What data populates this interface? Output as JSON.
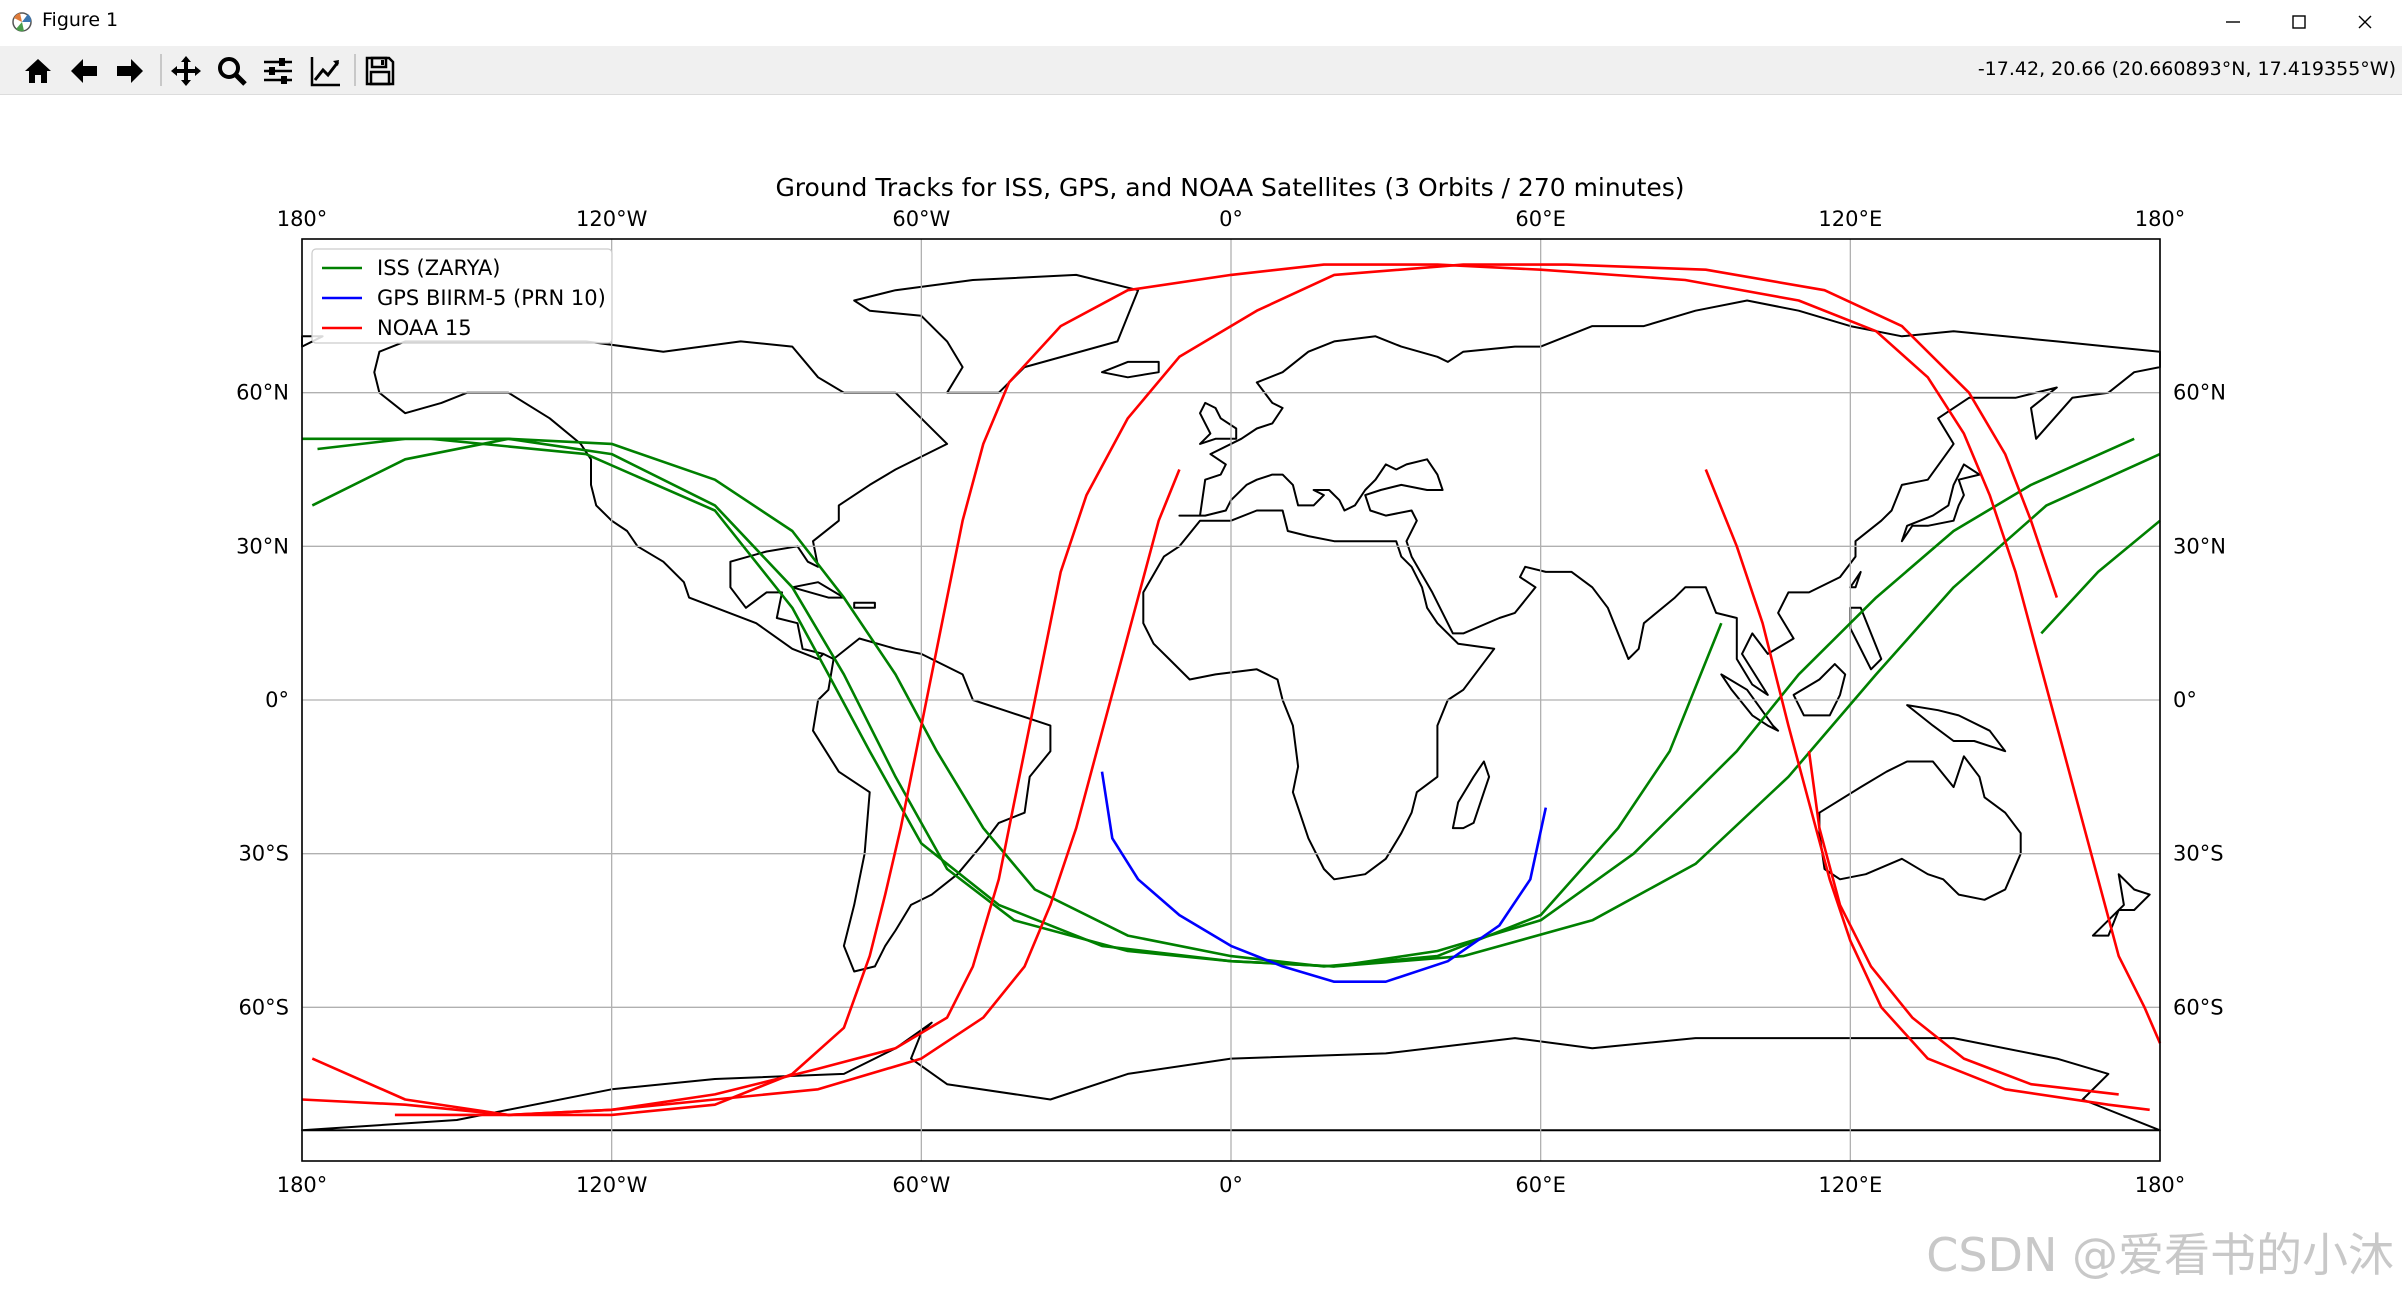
{
  "window": {
    "title": "Figure 1",
    "minimize_icon": "minimize-icon",
    "maximize_icon": "maximize-icon",
    "close_icon": "close-icon"
  },
  "toolbar": {
    "buttons": [
      "home-icon",
      "back-arrow-icon",
      "forward-arrow-icon",
      "pan-move-icon",
      "zoom-magnifier-icon",
      "configure-subplots-icon",
      "edit-axis-icon",
      "save-floppy-icon"
    ],
    "coordinates": "-17.42, 20.66 (20.660893°N, 17.419355°W)"
  },
  "watermark": "CSDN @爱看书的小沐",
  "chart_data": {
    "type": "line",
    "title": "Ground Tracks for ISS, GPS, and NOAA Satellites (3 Orbits / 270 minutes)",
    "xlim": [
      -180,
      180
    ],
    "ylim": [
      -90,
      90
    ],
    "grid": true,
    "projection": "PlateCarree world map with coastlines",
    "x_ticks": [
      -180,
      -120,
      -60,
      0,
      60,
      120,
      180
    ],
    "x_tick_labels": [
      "180°",
      "120°W",
      "60°W",
      "0°",
      "60°E",
      "120°E",
      "180°"
    ],
    "y_ticks": [
      60,
      30,
      0,
      -30,
      -60
    ],
    "y_tick_labels": [
      "60°N",
      "30°N",
      "0°",
      "30°S",
      "60°S"
    ],
    "legend_position": "upper-left",
    "series": [
      {
        "name": "ISS (ZARYA)",
        "color": "#008000",
        "segments": [
          [
            [
              -178,
              38
            ],
            [
              -160,
              47
            ],
            [
              -140,
              51
            ],
            [
              -120,
              50
            ],
            [
              -100,
              43
            ],
            [
              -85,
              33
            ],
            [
              -75,
              20
            ],
            [
              -65,
              5
            ],
            [
              -57,
              -10
            ],
            [
              -48,
              -25
            ],
            [
              -38,
              -37
            ],
            [
              -20,
              -46
            ],
            [
              0,
              -50
            ],
            [
              18,
              -52
            ],
            [
              40,
              -50
            ],
            [
              60,
              -42
            ],
            [
              75,
              -25
            ],
            [
              85,
              -10
            ],
            [
              95,
              15
            ]
          ],
          [
            [
              -177,
              49
            ],
            [
              -160,
              51
            ],
            [
              -140,
              51
            ],
            [
              -120,
              48
            ],
            [
              -100,
              38
            ],
            [
              -85,
              22
            ],
            [
              -75,
              5
            ],
            [
              -65,
              -15
            ],
            [
              -55,
              -33
            ],
            [
              -42,
              -43
            ],
            [
              -20,
              -49
            ],
            [
              0,
              -51
            ],
            [
              20,
              -52
            ],
            [
              40,
              -49
            ],
            [
              60,
              -43
            ],
            [
              78,
              -30
            ],
            [
              98,
              -10
            ],
            [
              110,
              5
            ],
            [
              125,
              20
            ],
            [
              140,
              33
            ],
            [
              155,
              42
            ],
            [
              175,
              51
            ]
          ],
          [
            [
              -180,
              51
            ],
            [
              -155,
              51
            ],
            [
              -125,
              48
            ],
            [
              -100,
              37
            ],
            [
              -85,
              18
            ],
            [
              -78,
              5
            ],
            [
              -70,
              -10
            ],
            [
              -60,
              -28
            ],
            [
              -45,
              -40
            ],
            [
              -25,
              -48
            ],
            [
              0,
              -51
            ],
            [
              20,
              -52
            ],
            [
              45,
              -50
            ],
            [
              70,
              -43
            ],
            [
              90,
              -32
            ],
            [
              108,
              -15
            ],
            [
              125,
              5
            ],
            [
              140,
              22
            ],
            [
              158,
              38
            ],
            [
              180,
              48
            ]
          ],
          [
            [
              157,
              13
            ],
            [
              168,
              25
            ],
            [
              180,
              35
            ]
          ]
        ]
      },
      {
        "name": "GPS BIIRM-5 (PRN 10)",
        "color": "#0000ff",
        "segments": [
          [
            [
              -25,
              -14
            ],
            [
              -23,
              -27
            ],
            [
              -18,
              -35
            ],
            [
              -10,
              -42
            ],
            [
              0,
              -48
            ],
            [
              10,
              -52
            ],
            [
              20,
              -55
            ],
            [
              30,
              -55
            ],
            [
              42,
              -51
            ],
            [
              52,
              -44
            ],
            [
              58,
              -35
            ],
            [
              61,
              -21
            ]
          ]
        ]
      },
      {
        "name": "NOAA 15",
        "color": "#ff0000",
        "segments": [
          [
            [
              -178,
              -70
            ],
            [
              -160,
              -78
            ],
            [
              -140,
              -81
            ],
            [
              -120,
              -81
            ],
            [
              -100,
              -79
            ],
            [
              -85,
              -73
            ],
            [
              -75,
              -64
            ],
            [
              -70,
              -50
            ],
            [
              -67,
              -38
            ],
            [
              -64,
              -25
            ],
            [
              -61,
              -10
            ],
            [
              -58,
              5
            ],
            [
              -55,
              20
            ],
            [
              -52,
              35
            ],
            [
              -48,
              50
            ],
            [
              -43,
              62
            ],
            [
              -33,
              73
            ],
            [
              -20,
              80
            ],
            [
              0,
              83
            ],
            [
              18,
              85
            ],
            [
              40,
              85
            ],
            [
              60,
              84
            ],
            [
              88,
              82
            ],
            [
              110,
              78
            ],
            [
              125,
              72
            ],
            [
              135,
              63
            ],
            [
              142,
              52
            ],
            [
              147,
              40
            ],
            [
              152,
              25
            ],
            [
              156,
              10
            ],
            [
              160,
              -5
            ],
            [
              164,
              -20
            ],
            [
              168,
              -35
            ],
            [
              172,
              -50
            ],
            [
              177,
              -60
            ],
            [
              180,
              -67
            ]
          ],
          [
            [
              -180,
              -78
            ],
            [
              -160,
              -79
            ],
            [
              -140,
              -81
            ],
            [
              -120,
              -80
            ],
            [
              -100,
              -77
            ],
            [
              -80,
              -72
            ],
            [
              -65,
              -68
            ],
            [
              -55,
              -62
            ],
            [
              -50,
              -52
            ],
            [
              -45,
              -35
            ],
            [
              -42,
              -20
            ],
            [
              -39,
              -5
            ],
            [
              -36,
              10
            ],
            [
              -33,
              25
            ],
            [
              -28,
              40
            ],
            [
              -20,
              55
            ],
            [
              -10,
              67
            ],
            [
              5,
              76
            ],
            [
              20,
              83
            ],
            [
              45,
              85
            ],
            [
              65,
              85
            ],
            [
              92,
              84
            ],
            [
              115,
              80
            ],
            [
              130,
              73
            ],
            [
              143,
              60
            ],
            [
              150,
              48
            ],
            [
              155,
              35
            ],
            [
              160,
              20
            ]
          ],
          [
            [
              -162,
              -81
            ],
            [
              -140,
              -81
            ],
            [
              -120,
              -80
            ],
            [
              -100,
              -78
            ],
            [
              -80,
              -76
            ],
            [
              -60,
              -70
            ],
            [
              -48,
              -62
            ],
            [
              -40,
              -52
            ],
            [
              -35,
              -40
            ],
            [
              -30,
              -25
            ],
            [
              -26,
              -10
            ],
            [
              -22,
              5
            ],
            [
              -18,
              20
            ],
            [
              -14,
              35
            ],
            [
              -10,
              45
            ]
          ],
          [
            [
              92,
              45
            ],
            [
              98,
              30
            ],
            [
              103,
              15
            ],
            [
              108,
              -5
            ],
            [
              112,
              -20
            ],
            [
              116,
              -35
            ],
            [
              120,
              -47
            ],
            [
              126,
              -60
            ],
            [
              135,
              -70
            ],
            [
              150,
              -76
            ],
            [
              170,
              -79
            ],
            [
              178,
              -80
            ]
          ],
          [
            [
              112,
              -10
            ],
            [
              114,
              -25
            ],
            [
              118,
              -40
            ],
            [
              124,
              -52
            ],
            [
              132,
              -62
            ],
            [
              142,
              -70
            ],
            [
              155,
              -75
            ],
            [
              172,
              -77
            ]
          ]
        ]
      }
    ]
  }
}
